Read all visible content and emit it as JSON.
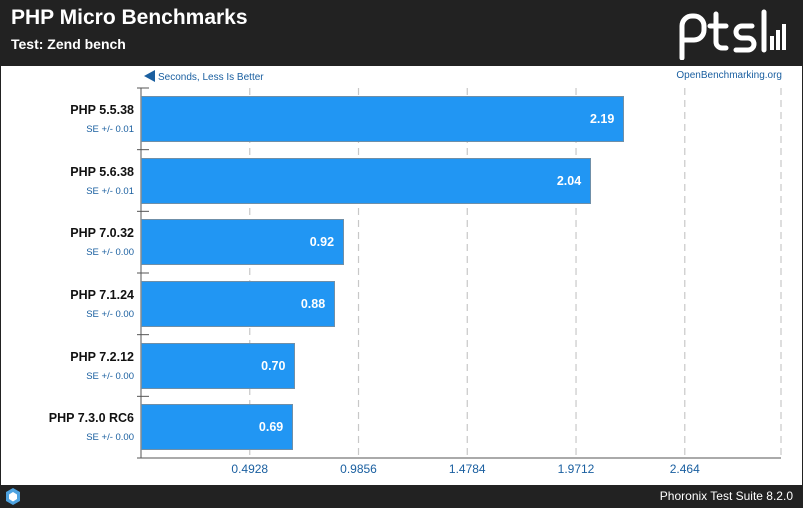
{
  "header": {
    "title": "PHP Micro Benchmarks",
    "subtitle": "Test: Zend bench"
  },
  "chart_data": {
    "type": "bar",
    "orientation": "horizontal",
    "title": "PHP Micro Benchmarks",
    "subtitle": "Test: Zend bench",
    "direction_note": "Seconds, Less Is Better",
    "source_note": "OpenBenchmarking.org",
    "categories": [
      "PHP 5.5.38",
      "PHP 5.6.38",
      "PHP 7.0.32",
      "PHP 7.1.24",
      "PHP 7.2.12",
      "PHP 7.3.0 RC6"
    ],
    "values": [
      2.19,
      2.04,
      0.92,
      0.88,
      0.7,
      0.69
    ],
    "value_labels": [
      "2.19",
      "2.04",
      "0.92",
      "0.88",
      "0.70",
      "0.69"
    ],
    "errors": [
      "SE +/- 0.01",
      "SE +/- 0.01",
      "SE +/- 0.00",
      "SE +/- 0.00",
      "SE +/- 0.00",
      "SE +/- 0.00"
    ],
    "xticks": [
      0.4928,
      0.9856,
      1.4784,
      1.9712,
      2.464
    ],
    "xtick_labels": [
      "0.4928",
      "0.9856",
      "1.4784",
      "1.9712",
      "2.464"
    ],
    "xlim": [
      0,
      2.9
    ],
    "grid": true,
    "bar_color": "#2196f3"
  },
  "footer": {
    "text": "Phoronix Test Suite 8.2.0"
  },
  "colors": {
    "header_bg": "#222222",
    "accent": "#2196f3",
    "note_text": "#1a5fa0"
  }
}
